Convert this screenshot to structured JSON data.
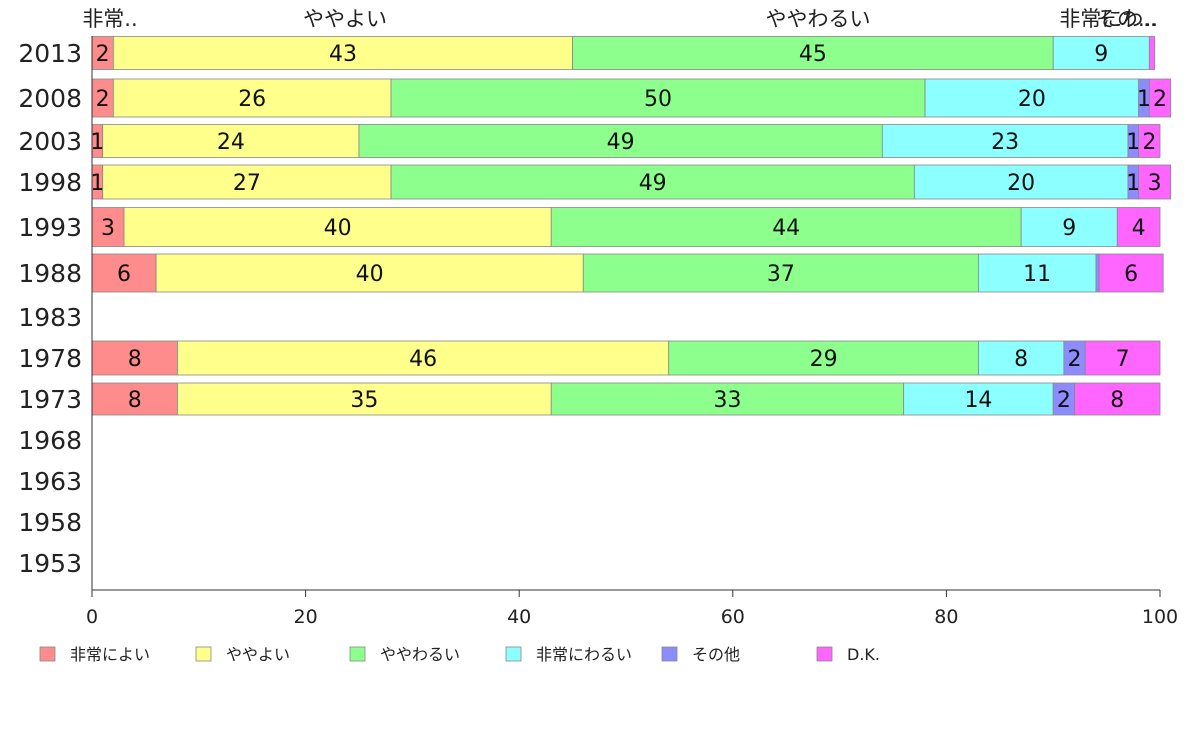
{
  "chart_data": {
    "type": "bar",
    "orientation": "horizontal",
    "stacked": true,
    "title": "",
    "xlabel": "",
    "ylabel": "",
    "xlim": [
      0,
      100
    ],
    "x_ticks": [
      "0",
      "20",
      "40",
      "60",
      "80",
      "100"
    ],
    "categories": [
      "2013",
      "2008",
      "2003",
      "1998",
      "1993",
      "1988",
      "1983",
      "1978",
      "1973",
      "1968",
      "1963",
      "1958",
      "1953"
    ],
    "top_labels": [
      "非常..",
      "ややよい",
      "ややわるい",
      "非常にわ..",
      "その..."
    ],
    "legend_position": "bottom",
    "grid": false,
    "series": [
      {
        "name": "非常によい",
        "color": "#ff8c8c",
        "values": [
          2,
          2,
          1,
          1,
          3,
          6,
          null,
          8,
          8,
          null,
          null,
          null,
          null
        ]
      },
      {
        "name": "ややよい",
        "color": "#ffff8c",
        "values": [
          43,
          26,
          24,
          27,
          40,
          40,
          null,
          46,
          35,
          null,
          null,
          null,
          null
        ]
      },
      {
        "name": "ややわるい",
        "color": "#8cff8c",
        "values": [
          45,
          50,
          49,
          49,
          44,
          37,
          null,
          29,
          33,
          null,
          null,
          null,
          null
        ]
      },
      {
        "name": "非常にわるい",
        "color": "#8cffff",
        "values": [
          9,
          20,
          23,
          20,
          9,
          11,
          null,
          8,
          14,
          null,
          null,
          null,
          null
        ]
      },
      {
        "name": "その他",
        "color": "#8c8cff",
        "values": [
          0,
          1,
          1,
          1,
          0,
          0.3,
          null,
          2,
          2,
          null,
          null,
          null,
          null
        ]
      },
      {
        "name": "D.K.",
        "color": "#ff66ff",
        "values": [
          0.5,
          2,
          2,
          3,
          4,
          6,
          null,
          7,
          8,
          null,
          null,
          null,
          null
        ]
      }
    ]
  }
}
